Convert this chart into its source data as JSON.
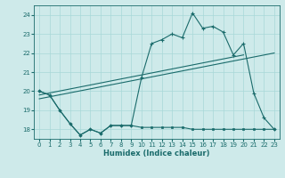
{
  "xlabel": "Humidex (Indice chaleur)",
  "ylabel": "",
  "bg_color": "#ceeaea",
  "grid_color": "#a8d8d8",
  "line_color": "#1a6b6b",
  "xlim": [
    -0.5,
    23.5
  ],
  "ylim": [
    17.5,
    24.5
  ],
  "xticks": [
    0,
    1,
    2,
    3,
    4,
    5,
    6,
    7,
    8,
    9,
    10,
    11,
    12,
    13,
    14,
    15,
    16,
    17,
    18,
    19,
    20,
    21,
    22,
    23
  ],
  "yticks": [
    18,
    19,
    20,
    21,
    22,
    23,
    24
  ],
  "x_all": [
    0,
    1,
    2,
    3,
    4,
    5,
    6,
    7,
    8,
    9,
    10,
    11,
    12,
    13,
    14,
    15,
    16,
    17,
    18,
    19,
    20,
    21,
    22,
    23
  ],
  "line_main": [
    20.0,
    19.8,
    19.0,
    18.3,
    17.7,
    18.0,
    17.8,
    18.2,
    18.2,
    18.2,
    20.7,
    22.5,
    22.7,
    23.0,
    22.8,
    24.1,
    23.3,
    23.4,
    23.1,
    21.9,
    22.5,
    19.9,
    18.6,
    18.0
  ],
  "line_min": [
    20.0,
    19.8,
    19.0,
    18.3,
    17.7,
    18.0,
    17.8,
    18.2,
    18.2,
    18.2,
    18.1,
    18.1,
    18.1,
    18.1,
    18.1,
    18.0,
    18.0,
    18.0,
    18.0,
    18.0,
    18.0,
    18.0,
    18.0,
    18.0
  ],
  "trend1_x": [
    0,
    20
  ],
  "trend1_y": [
    19.8,
    21.9
  ],
  "trend2_x": [
    0,
    23
  ],
  "trend2_y": [
    19.6,
    22.0
  ]
}
